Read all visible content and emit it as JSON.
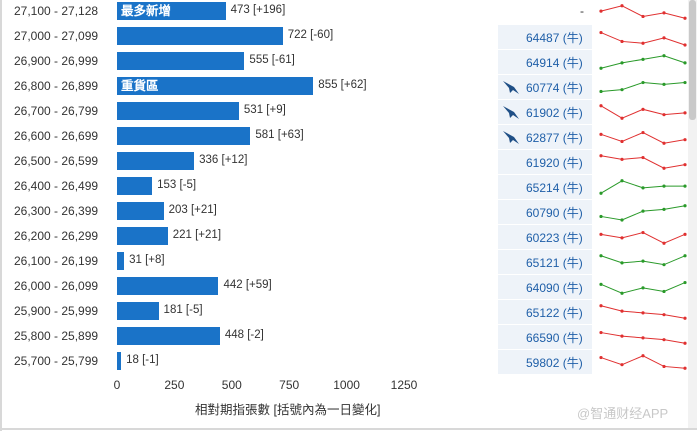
{
  "chart_data": {
    "type": "bar",
    "orientation": "horizontal",
    "xlabel": "相對期指張數 [括號內為一日變化]",
    "xlim": [
      0,
      1250
    ],
    "ticks": [
      "0",
      "250",
      "500",
      "750",
      "1000",
      "1250"
    ],
    "rows": [
      {
        "range": "27,100 - 27,128",
        "value": 473,
        "label": "473 [+196]",
        "tag": "最多新增",
        "ticket": "-",
        "bird": false,
        "spark": [
          4,
          1,
          7,
          5,
          8
        ],
        "spark_color": "#e03030"
      },
      {
        "range": "27,000 - 27,099",
        "value": 722,
        "label": "722 [-60]",
        "tag": "",
        "ticket": "64487 (牛)",
        "bird": false,
        "spark": [
          2,
          7,
          8,
          5,
          9
        ],
        "spark_color": "#e03030"
      },
      {
        "range": "26,900 - 26,999",
        "value": 555,
        "label": "555 [-61]",
        "tag": "",
        "ticket": "64914 (牛)",
        "bird": false,
        "spark": [
          8,
          5,
          3,
          1,
          5
        ],
        "spark_color": "#2a9a2a"
      },
      {
        "range": "26,800 - 26,899",
        "value": 855,
        "label": "855 [+62]",
        "tag": "重貨區",
        "ticket": "60774 (牛)",
        "bird": true,
        "spark": [
          7,
          6,
          2,
          3,
          2
        ],
        "spark_color": "#2a9a2a"
      },
      {
        "range": "26,700 - 26,799",
        "value": 531,
        "label": "531 [+9]",
        "tag": "",
        "ticket": "61902 (牛)",
        "bird": true,
        "spark": [
          1,
          8,
          3,
          6,
          5
        ],
        "spark_color": "#e03030"
      },
      {
        "range": "26,600 - 26,699",
        "value": 581,
        "label": "581 [+63]",
        "tag": "",
        "ticket": "62877 (牛)",
        "bird": true,
        "spark": [
          3,
          7,
          2,
          8,
          6
        ],
        "spark_color": "#e03030"
      },
      {
        "range": "26,500 - 26,599",
        "value": 336,
        "label": "336 [+12]",
        "tag": "",
        "ticket": "61920 (牛)",
        "bird": false,
        "spark": [
          1,
          3,
          2,
          8,
          6
        ],
        "spark_color": "#e03030"
      },
      {
        "range": "26,400 - 26,499",
        "value": 153,
        "label": "153 [-5]",
        "tag": "",
        "ticket": "65214 (牛)",
        "bird": false,
        "spark": [
          8,
          1,
          5,
          4,
          4
        ],
        "spark_color": "#2a9a2a"
      },
      {
        "range": "26,300 - 26,399",
        "value": 203,
        "label": "203 [+21]",
        "tag": "",
        "ticket": "60790 (牛)",
        "bird": false,
        "spark": [
          7,
          9,
          4,
          3,
          1
        ],
        "spark_color": "#2a9a2a"
      },
      {
        "range": "26,200 - 26,299",
        "value": 221,
        "label": "221 [+21]",
        "tag": "",
        "ticket": "60223 (牛)",
        "bird": false,
        "spark": [
          3,
          5,
          2,
          8,
          3
        ],
        "spark_color": "#e03030"
      },
      {
        "range": "26,100 - 26,199",
        "value": 31,
        "label": "31 [+8]",
        "tag": "",
        "ticket": "65121 (牛)",
        "bird": false,
        "spark": [
          1,
          5,
          4,
          6,
          1
        ],
        "spark_color": "#2a9a2a"
      },
      {
        "range": "26,000 - 26,099",
        "value": 442,
        "label": "442 [+59]",
        "tag": "",
        "ticket": "64090 (牛)",
        "bird": false,
        "spark": [
          3,
          8,
          5,
          7,
          2
        ],
        "spark_color": "#2a9a2a"
      },
      {
        "range": "25,900 - 25,999",
        "value": 181,
        "label": "181 [-5]",
        "tag": "",
        "ticket": "65122 (牛)",
        "bird": false,
        "spark": [
          1,
          4,
          5,
          6,
          8
        ],
        "spark_color": "#e03030"
      },
      {
        "range": "25,800 - 25,899",
        "value": 448,
        "label": "448 [-2]",
        "tag": "",
        "ticket": "66590 (牛)",
        "bird": false,
        "spark": [
          2,
          4,
          5,
          6,
          8
        ],
        "spark_color": "#e03030"
      },
      {
        "range": "25,700 - 25,799",
        "value": 18,
        "label": "18 [-1]",
        "tag": "",
        "ticket": "59802 (牛)",
        "bird": false,
        "spark": [
          2,
          6,
          1,
          7,
          8
        ],
        "spark_color": "#e03030"
      }
    ]
  },
  "watermark": "@智通财经APP"
}
